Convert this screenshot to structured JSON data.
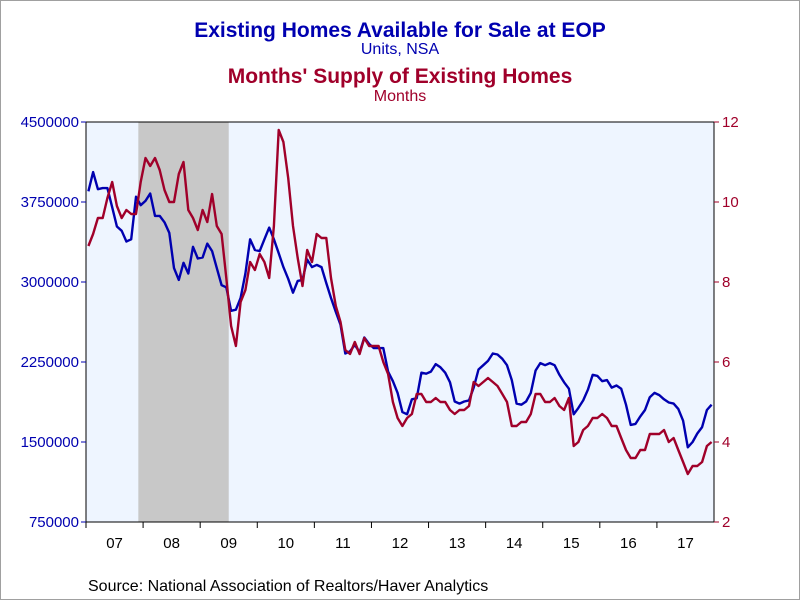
{
  "titles": {
    "title1": "Existing Homes Available for Sale at EOP",
    "subtitle1": "Units, NSA",
    "title2": "Months' Supply of Existing Homes",
    "subtitle2": "Months"
  },
  "source": "Source:  National Association of Realtors/Haver Analytics",
  "colors": {
    "inventory": "#0000b0",
    "supply": "#a0002a",
    "recession": "#c8c8c8",
    "plot_bg": "#eef5ff"
  },
  "chart_data": {
    "type": "line",
    "x_start": "2007-01",
    "x_end": "2017-12",
    "xlabel": "",
    "x_ticks": [
      "07",
      "08",
      "09",
      "10",
      "11",
      "12",
      "13",
      "14",
      "15",
      "16",
      "17"
    ],
    "recession": [
      "2007-12",
      "2009-06"
    ],
    "y_left": {
      "label": "Units, NSA",
      "range": [
        750000,
        4500000
      ],
      "ticks": [
        "750000",
        "1500000",
        "2250000",
        "3000000",
        "3750000",
        "4500000"
      ]
    },
    "y_right": {
      "label": "Months",
      "range": [
        2,
        12
      ],
      "ticks": [
        "2",
        "4",
        "6",
        "8",
        "10",
        "12"
      ]
    },
    "series": [
      {
        "name": "Existing Homes Available for Sale at EOP",
        "axis": "left",
        "values": [
          3850000,
          4030000,
          3870000,
          3880000,
          3880000,
          3700000,
          3520000,
          3480000,
          3380000,
          3400000,
          3800000,
          3720000,
          3760000,
          3830000,
          3620000,
          3620000,
          3560000,
          3460000,
          3130000,
          3020000,
          3180000,
          3080000,
          3330000,
          3220000,
          3230000,
          3360000,
          3290000,
          3130000,
          2970000,
          2950000,
          2730000,
          2740000,
          2850000,
          3080000,
          3400000,
          3300000,
          3290000,
          3400000,
          3510000,
          3400000,
          3270000,
          3140000,
          3030000,
          2900000,
          3010000,
          3020000,
          3210000,
          3140000,
          3160000,
          3140000,
          2990000,
          2850000,
          2720000,
          2600000,
          2330000,
          2350000,
          2410000,
          2340000,
          2480000,
          2420000,
          2380000,
          2380000,
          2380000,
          2160000,
          2070000,
          1960000,
          1780000,
          1760000,
          1900000,
          1910000,
          2150000,
          2140000,
          2160000,
          2230000,
          2200000,
          2150000,
          2060000,
          1880000,
          1860000,
          1880000,
          1890000,
          2010000,
          2180000,
          2220000,
          2260000,
          2330000,
          2320000,
          2280000,
          2220000,
          2080000,
          1860000,
          1850000,
          1880000,
          1960000,
          2170000,
          2240000,
          2220000,
          2240000,
          2220000,
          2130000,
          2060000,
          2000000,
          1760000,
          1820000,
          1890000,
          1990000,
          2130000,
          2120000,
          2070000,
          2080000,
          2010000,
          2030000,
          2000000,
          1850000,
          1660000,
          1670000,
          1740000,
          1800000,
          1920000,
          1960000,
          1940000,
          1900000,
          1870000,
          1860000,
          1810000,
          1700000,
          1450000,
          1500000,
          1580000,
          1640000,
          1800000,
          1850000
        ]
      },
      {
        "name": "Months' Supply of Existing Homes",
        "axis": "right",
        "values": [
          8.9,
          9.2,
          9.6,
          9.6,
          10.1,
          10.5,
          9.9,
          9.6,
          9.8,
          9.7,
          9.7,
          10.5,
          11.1,
          10.9,
          11.1,
          10.8,
          10.3,
          10.0,
          10.0,
          10.7,
          11.0,
          9.8,
          9.6,
          9.3,
          9.8,
          9.5,
          10.2,
          9.4,
          9.2,
          8.1,
          6.9,
          6.4,
          7.5,
          7.8,
          8.5,
          8.3,
          8.7,
          8.5,
          8.1,
          9.4,
          11.8,
          11.5,
          10.6,
          9.4,
          8.6,
          7.9,
          8.8,
          8.5,
          9.2,
          9.1,
          9.1,
          8.1,
          7.4,
          7.0,
          6.3,
          6.2,
          6.5,
          6.2,
          6.6,
          6.4,
          6.4,
          6.4,
          6.0,
          5.7,
          5.0,
          4.6,
          4.4,
          4.6,
          4.7,
          5.2,
          5.2,
          5.0,
          5.0,
          5.1,
          5.0,
          5.0,
          4.8,
          4.7,
          4.8,
          4.8,
          4.9,
          5.5,
          5.4,
          5.5,
          5.6,
          5.5,
          5.4,
          5.2,
          5.0,
          4.4,
          4.4,
          4.5,
          4.5,
          4.7,
          5.2,
          5.2,
          5.0,
          5.0,
          5.1,
          4.9,
          4.8,
          5.1,
          3.9,
          4.0,
          4.3,
          4.4,
          4.6,
          4.6,
          4.7,
          4.6,
          4.4,
          4.4,
          4.1,
          3.8,
          3.6,
          3.6,
          3.8,
          3.8,
          4.2,
          4.2,
          4.2,
          4.3,
          4.0,
          4.1,
          3.8,
          3.5,
          3.2,
          3.4,
          3.4,
          3.5,
          3.9,
          4.0
        ]
      }
    ]
  }
}
